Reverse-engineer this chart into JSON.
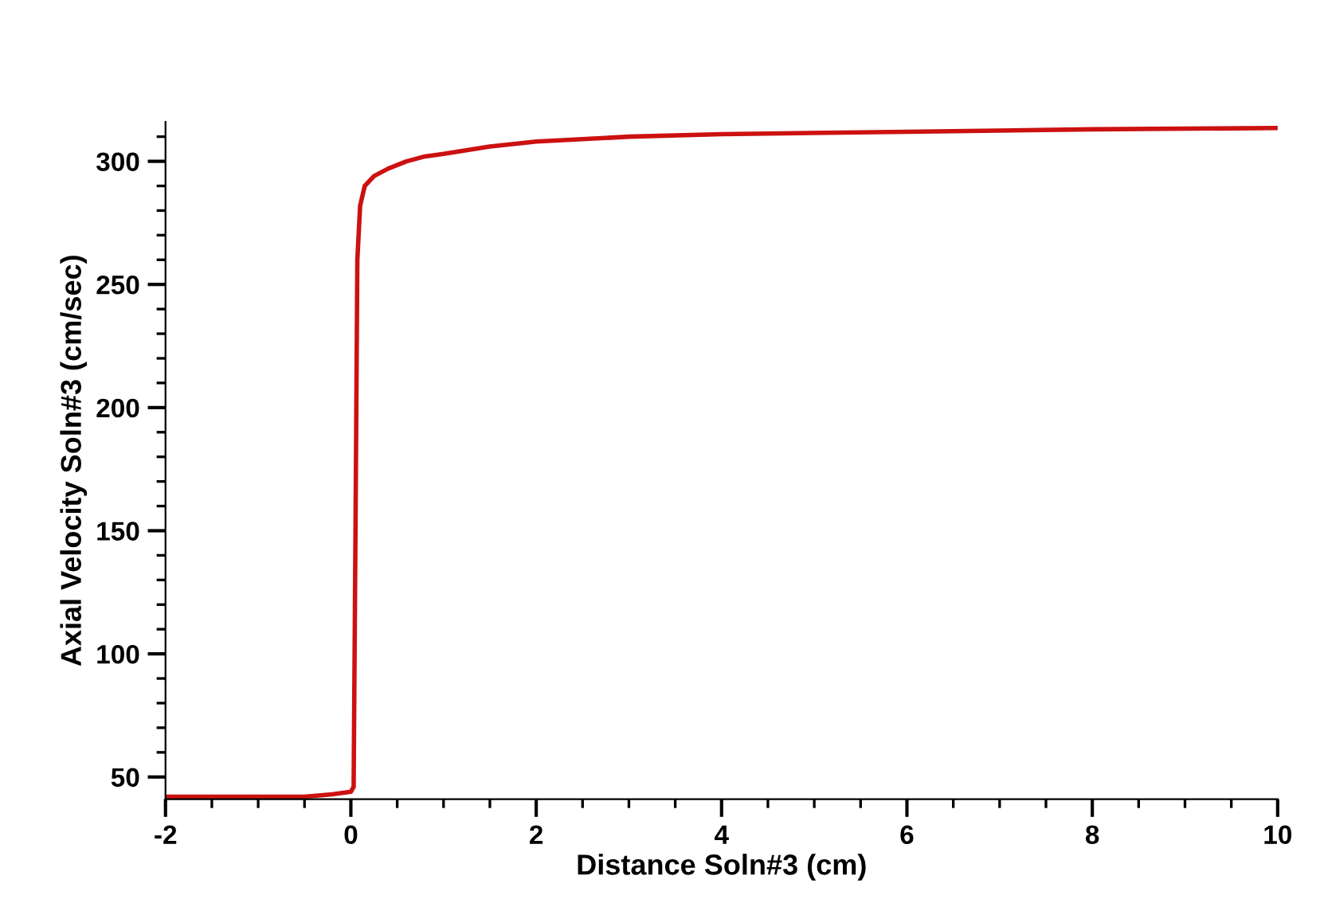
{
  "chart_data": {
    "type": "line",
    "xlabel": "Distance Soln#3 (cm)",
    "ylabel": "Axial Velocity Soln#3 (cm/sec)",
    "x": [
      -2,
      -1,
      -0.5,
      -0.2,
      0,
      0.03,
      0.05,
      0.07,
      0.1,
      0.15,
      0.25,
      0.4,
      0.6,
      0.8,
      1,
      1.5,
      2,
      3,
      4,
      6,
      8,
      10
    ],
    "series": [
      {
        "color": "#cc1111",
        "values": [
          42,
          42,
          42,
          43,
          44,
          46,
          150,
          260,
          282,
          290,
          294,
          297,
          300,
          302,
          303,
          306,
          308,
          310,
          311,
          312,
          313,
          313.5
        ]
      }
    ],
    "xlim": [
      -2,
      10
    ],
    "ylim": [
      41,
      316
    ],
    "xticks": [
      -2,
      {
        "value": -1.5,
        "label": null
      },
      {
        "value": -1,
        "label": null
      },
      {
        "value": -0.5,
        "label": null
      },
      0,
      {
        "value": 0.5,
        "label": null
      },
      {
        "value": 1,
        "label": null
      },
      {
        "value": 1.5,
        "label": null
      },
      2,
      {
        "value": 2.5,
        "label": null
      },
      {
        "value": 3,
        "label": null
      },
      {
        "value": 3.5,
        "label": null
      },
      4,
      {
        "value": 4.5,
        "label": null
      },
      {
        "value": 5,
        "label": null
      },
      {
        "value": 5.5,
        "label": null
      },
      6,
      {
        "value": 6.5,
        "label": null
      },
      {
        "value": 7,
        "label": null
      },
      {
        "value": 7.5,
        "label": null
      },
      8,
      {
        "value": 8.5,
        "label": null
      },
      {
        "value": 9,
        "label": null
      },
      {
        "value": 9.5,
        "label": null
      },
      10
    ],
    "yticks": [
      50,
      {
        "value": 60,
        "label": null
      },
      {
        "value": 70,
        "label": null
      },
      {
        "value": 80,
        "label": null
      },
      {
        "value": 90,
        "label": null
      },
      100,
      {
        "value": 110,
        "label": null
      },
      {
        "value": 120,
        "label": null
      },
      {
        "value": 130,
        "label": null
      },
      {
        "value": 140,
        "label": null
      },
      150,
      {
        "value": 160,
        "label": null
      },
      {
        "value": 170,
        "label": null
      },
      {
        "value": 180,
        "label": null
      },
      {
        "value": 190,
        "label": null
      },
      200,
      {
        "value": 210,
        "label": null
      },
      {
        "value": 220,
        "label": null
      },
      {
        "value": 230,
        "label": null
      },
      {
        "value": 240,
        "label": null
      },
      250,
      {
        "value": 260,
        "label": null
      },
      {
        "value": 270,
        "label": null
      },
      {
        "value": 280,
        "label": null
      },
      {
        "value": 290,
        "label": null
      },
      300,
      {
        "value": 310,
        "label": null
      }
    ],
    "grid": false,
    "legend": false,
    "marker": "none",
    "line_style": "solid"
  }
}
